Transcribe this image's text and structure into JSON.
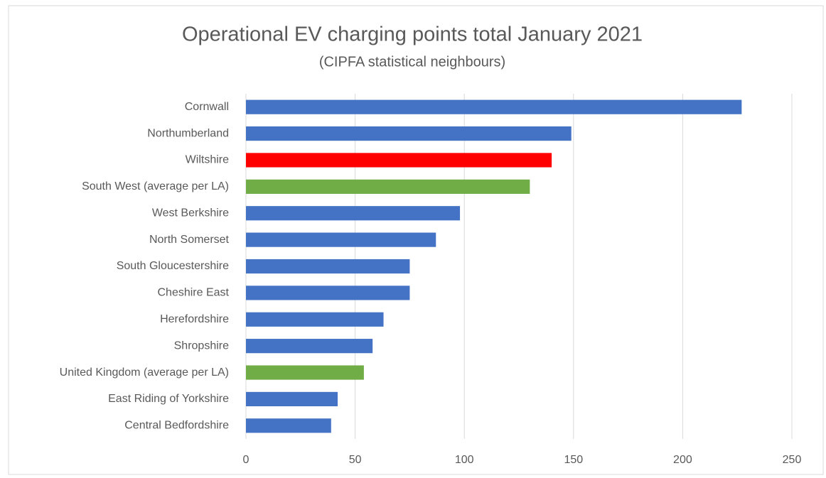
{
  "chart_data": {
    "type": "bar",
    "orientation": "horizontal",
    "title": "Operational EV charging points total January 2021",
    "subtitle": "(CIPFA statistical neighbours)",
    "categories": [
      "Cornwall",
      "Northumberland",
      "Wiltshire",
      "South West (average per LA)",
      "West Berkshire",
      "North Somerset",
      "South Gloucestershire",
      "Cheshire East",
      "Herefordshire",
      "Shropshire",
      "United Kingdom (average per LA)",
      "East Riding of Yorkshire",
      "Central Bedfordshire"
    ],
    "values": [
      227,
      149,
      140,
      130,
      98,
      87,
      75,
      75,
      63,
      58,
      54,
      42,
      39
    ],
    "colors": [
      "#4472c4",
      "#4472c4",
      "#ff0000",
      "#70ad47",
      "#4472c4",
      "#4472c4",
      "#4472c4",
      "#4472c4",
      "#4472c4",
      "#4472c4",
      "#70ad47",
      "#4472c4",
      "#4472c4"
    ],
    "xlim": [
      0,
      250
    ],
    "xticks": [
      0,
      50,
      100,
      150,
      200,
      250
    ],
    "grid": true
  }
}
